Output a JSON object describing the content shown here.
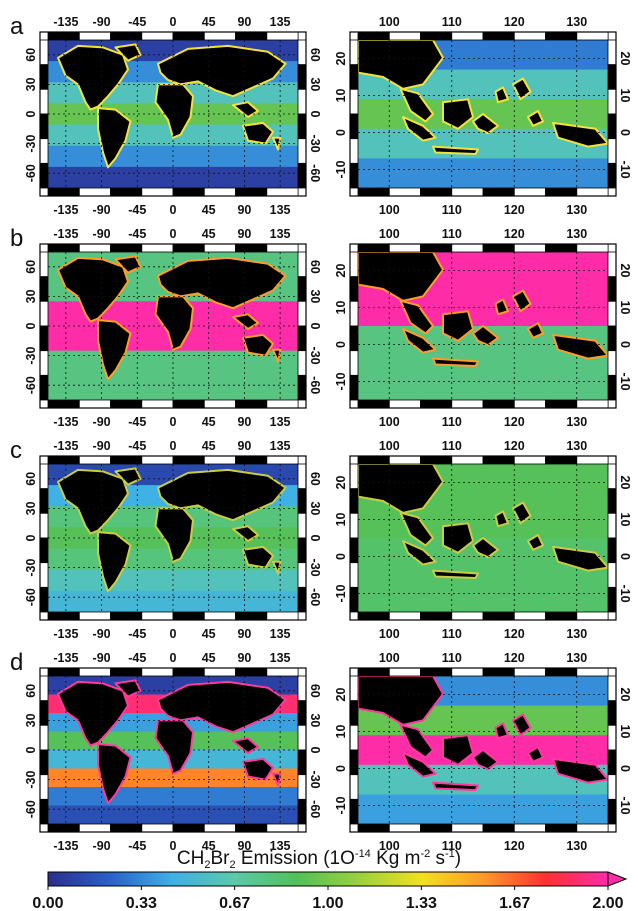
{
  "chart_data": [
    {
      "type": "heatmap",
      "panel": "a",
      "region": "global",
      "x_ticks": [
        "-135",
        "-90",
        "-45",
        "0",
        "45",
        "90",
        "135"
      ],
      "y_ticks": [
        "-60",
        "-30",
        "0",
        "30",
        "60"
      ],
      "fill": "latitude bands",
      "band_levels": [
        0.08,
        0.35,
        0.6,
        0.95,
        0.6,
        0.35,
        0.08
      ],
      "coast": "#f4e23a"
    },
    {
      "type": "heatmap",
      "panel": "a",
      "region": "maritime continent",
      "x_ticks": [
        "100",
        "110",
        "120",
        "130"
      ],
      "y_ticks": [
        "-10",
        "0",
        "10",
        "20"
      ],
      "fill": "latitude bands",
      "band_levels": [
        0.3,
        0.6,
        0.95,
        0.6,
        0.35
      ],
      "coast": "#f4e23a"
    },
    {
      "type": "heatmap",
      "panel": "b",
      "region": "global",
      "x_ticks": [
        "-135",
        "-90",
        "-45",
        "0",
        "45",
        "90",
        "135"
      ],
      "y_ticks": [
        "-60",
        "-30",
        "0",
        "30",
        "60"
      ],
      "fill": "latitude bands",
      "band_levels": [
        0.78,
        2.0,
        0.78
      ],
      "coast": "#ff9c2a"
    },
    {
      "type": "heatmap",
      "panel": "b",
      "region": "maritime continent",
      "x_ticks": [
        "100",
        "110",
        "120",
        "130"
      ],
      "y_ticks": [
        "-10",
        "0",
        "10",
        "20"
      ],
      "fill": "latitude bands",
      "band_levels": [
        2.0,
        0.78
      ],
      "coast": "#ff9c2a"
    },
    {
      "type": "heatmap",
      "panel": "c",
      "region": "global",
      "x_ticks": [
        "-135",
        "-90",
        "-45",
        "0",
        "45",
        "90",
        "135"
      ],
      "y_ticks": [
        "-60",
        "-30",
        "0",
        "30",
        "60"
      ],
      "fill": "latitude bands",
      "band_levels": [
        0.12,
        0.45,
        0.8,
        0.9,
        0.8,
        0.6,
        0.5
      ],
      "coast": "#cccc44"
    },
    {
      "type": "heatmap",
      "panel": "c",
      "region": "maritime continent",
      "x_ticks": [
        "100",
        "110",
        "120",
        "130"
      ],
      "y_ticks": [
        "-10",
        "0",
        "10",
        "20"
      ],
      "fill": "latitude bands",
      "band_levels": [
        0.9,
        0.85
      ],
      "coast": "#cccc44"
    },
    {
      "type": "heatmap",
      "panel": "d",
      "region": "global",
      "x_ticks": [
        "-135",
        "-90",
        "-45",
        "0",
        "45",
        "90",
        "135"
      ],
      "y_ticks": [
        "-60",
        "-30",
        "0",
        "30",
        "60"
      ],
      "fill": "latitude bands",
      "band_levels": [
        0.08,
        1.9,
        0.4,
        0.9,
        0.5,
        1.6,
        0.3,
        0.15
      ],
      "coast": "#ff3a9c"
    },
    {
      "type": "heatmap",
      "panel": "d",
      "region": "maritime continent",
      "x_ticks": [
        "100",
        "110",
        "120",
        "130"
      ],
      "y_ticks": [
        "-10",
        "0",
        "10",
        "20"
      ],
      "fill": "latitude bands",
      "band_levels": [
        0.35,
        0.95,
        2.0,
        0.6,
        0.4
      ],
      "coast": "#ff3a9c"
    }
  ],
  "panels": [
    {
      "label": "a"
    },
    {
      "label": "b"
    },
    {
      "label": "c"
    },
    {
      "label": "d"
    }
  ],
  "colorbar": {
    "title_parts": [
      "CH",
      "2",
      "Br",
      "2",
      " Emission (1O",
      "-14",
      " Kg m",
      "-2",
      " s",
      "-1",
      ")"
    ],
    "ticks": [
      "0.00",
      "0.33",
      "0.67",
      "1.00",
      "1.33",
      "1.67",
      "2.00"
    ],
    "range": [
      0,
      2.0
    ],
    "stops": [
      "#2b2e8c",
      "#2a60c8",
      "#3fb0e6",
      "#5cc9a9",
      "#52c05a",
      "#9ad13c",
      "#f2e11f",
      "#ff9928",
      "#ff3030",
      "#ff2ca8"
    ]
  }
}
